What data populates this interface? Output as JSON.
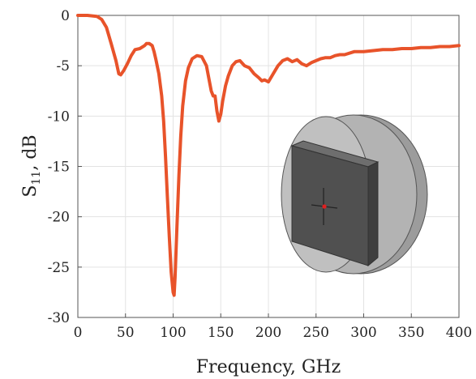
{
  "chart_data": {
    "type": "line",
    "title": "",
    "xlabel": "Frequency, GHz",
    "ylabel_main": "S",
    "ylabel_sub": "11",
    "ylabel_rest": ", dB",
    "xlim": [
      0,
      400
    ],
    "ylim": [
      -30,
      0
    ],
    "xticks": [
      0,
      50,
      100,
      150,
      200,
      250,
      300,
      350,
      400
    ],
    "yticks": [
      0,
      -5,
      -10,
      -15,
      -20,
      -25,
      -30
    ],
    "grid": true,
    "series": [
      {
        "color": "#e8532a",
        "x": [
          0,
          10,
          20,
          25,
          30,
          35,
          40,
          43,
          45,
          48,
          52,
          56,
          60,
          65,
          70,
          72,
          75,
          78,
          80,
          82,
          85,
          88,
          90,
          92,
          94,
          96,
          98,
          100,
          101,
          102,
          104,
          106,
          108,
          110,
          113,
          116,
          120,
          125,
          130,
          135,
          138,
          140,
          142,
          144,
          146,
          148,
          150,
          152,
          155,
          158,
          162,
          166,
          170,
          175,
          180,
          185,
          190,
          193,
          196,
          200,
          205,
          210,
          215,
          220,
          225,
          230,
          235,
          240,
          245,
          250,
          255,
          260,
          265,
          270,
          275,
          280,
          290,
          300,
          310,
          320,
          330,
          340,
          350,
          360,
          370,
          380,
          390,
          400
        ],
        "y": [
          0,
          0,
          -0.1,
          -0.4,
          -1.2,
          -2.8,
          -4.5,
          -5.8,
          -5.9,
          -5.5,
          -4.8,
          -4.0,
          -3.4,
          -3.3,
          -3.0,
          -2.8,
          -2.8,
          -3.0,
          -3.6,
          -4.4,
          -5.8,
          -8.0,
          -10.5,
          -14.0,
          -18.0,
          -22.0,
          -25.5,
          -27.5,
          -27.8,
          -26.0,
          -21.0,
          -16.0,
          -12.0,
          -9.0,
          -6.5,
          -5.2,
          -4.3,
          -4.0,
          -4.1,
          -5.0,
          -6.5,
          -7.5,
          -8.0,
          -8.0,
          -9.5,
          -10.5,
          -9.8,
          -8.5,
          -7.0,
          -6.0,
          -5.0,
          -4.6,
          -4.5,
          -5.0,
          -5.2,
          -5.8,
          -6.2,
          -6.5,
          -6.4,
          -6.6,
          -5.8,
          -5.0,
          -4.5,
          -4.3,
          -4.6,
          -4.4,
          -4.8,
          -5.0,
          -4.7,
          -4.5,
          -4.3,
          -4.2,
          -4.2,
          -4.0,
          -3.9,
          -3.9,
          -3.6,
          -3.6,
          -3.5,
          -3.4,
          -3.4,
          -3.3,
          -3.3,
          -3.2,
          -3.2,
          -3.1,
          -3.1,
          -3.0
        ]
      }
    ]
  },
  "inset": {
    "description_icon": "antenna-3d-render",
    "body_color": "#a6a6a6",
    "patch_color": "#4a4a4a",
    "feed_color": "#e02020"
  }
}
